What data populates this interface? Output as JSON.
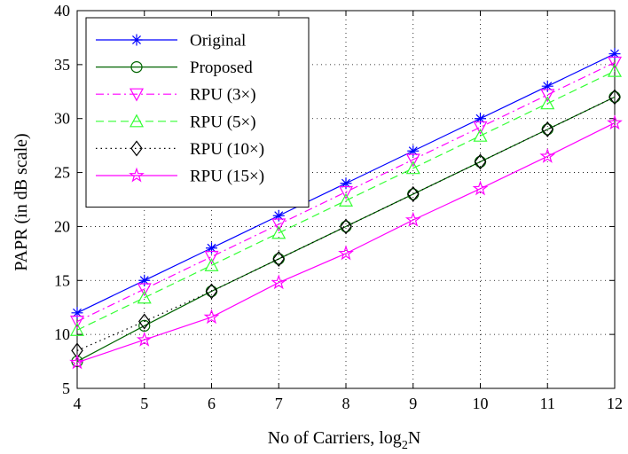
{
  "chart_data": {
    "type": "line",
    "title": "",
    "xlabel_main": "No of Carriers, log",
    "xlabel_sub": "2",
    "xlabel_tail": "N",
    "ylabel": "PAPR (in dB scale)",
    "xlim": [
      4,
      12
    ],
    "ylim": [
      5,
      40
    ],
    "xticks": [
      "4",
      "5",
      "6",
      "7",
      "8",
      "9",
      "10",
      "11",
      "12"
    ],
    "yticks": [
      "5",
      "10",
      "15",
      "20",
      "25",
      "30",
      "35",
      "40"
    ],
    "grid": true,
    "legend_position": "top-left",
    "x": [
      4,
      5,
      6,
      7,
      8,
      9,
      10,
      11,
      12
    ],
    "series": [
      {
        "name": "Original",
        "color": "#0000ff",
        "dash": "solid",
        "marker": "asterisk",
        "values": [
          12.0,
          15.0,
          18.0,
          21.0,
          24.0,
          27.0,
          30.0,
          33.0,
          36.0
        ]
      },
      {
        "name": "Proposed",
        "color": "#006400",
        "dash": "solid",
        "marker": "circle",
        "values": [
          7.5,
          10.8,
          14.0,
          17.0,
          20.0,
          23.0,
          26.0,
          29.0,
          32.0
        ]
      },
      {
        "name": "RPU (3×)",
        "color": "#ff00ff",
        "dash": "dashdot",
        "marker": "triangle-down",
        "values": [
          11.2,
          14.2,
          17.2,
          20.2,
          23.2,
          26.2,
          29.2,
          32.2,
          35.2
        ]
      },
      {
        "name": "RPU (5×)",
        "color": "#33ff33",
        "dash": "dashed",
        "marker": "triangle-up",
        "values": [
          10.4,
          13.4,
          16.4,
          19.4,
          22.4,
          25.4,
          28.4,
          31.4,
          34.4
        ]
      },
      {
        "name": "RPU (10×)",
        "color": "#000000",
        "dash": "dotted",
        "marker": "diamond",
        "values": [
          8.5,
          11.2,
          14.0,
          17.0,
          20.0,
          23.0,
          26.0,
          29.0,
          32.0
        ]
      },
      {
        "name": "RPU (15×)",
        "color": "#ff00ff",
        "dash": "solid",
        "marker": "pentagram",
        "values": [
          7.4,
          9.5,
          11.6,
          14.8,
          17.5,
          20.6,
          23.5,
          26.5,
          29.6
        ]
      }
    ]
  }
}
